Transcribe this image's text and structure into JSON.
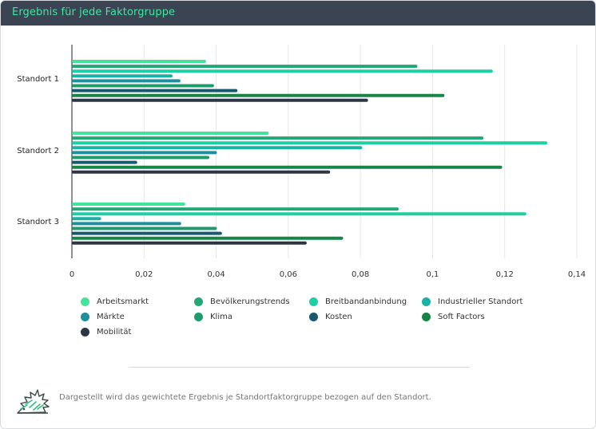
{
  "header": {
    "title": "Ergebnis für jede Faktorgruppe"
  },
  "footer": {
    "note": "Dargestellt wird das gewichtete Ergebnis je Standortfaktorgruppe bezogen auf den Standort."
  },
  "chart_data": {
    "type": "bar",
    "orientation": "horizontal",
    "categories": [
      "Standort 1",
      "Standort 2",
      "Standort 3"
    ],
    "x_ticks": [
      "0",
      "0,02",
      "0,04",
      "0,06",
      "0,08",
      "0,1",
      "0,12",
      "0,14"
    ],
    "xlim": [
      0,
      0.14
    ],
    "grid": true,
    "legend_position": "bottom",
    "series": [
      {
        "name": "Arbeitsmarkt",
        "color": "#44e39c",
        "values": [
          0.0372,
          0.0546,
          0.0314
        ]
      },
      {
        "name": "Bevölkerungstrends",
        "color": "#23a777",
        "values": [
          0.0958,
          0.1141,
          0.0906
        ]
      },
      {
        "name": "Breitbandanbindung",
        "color": "#1ecfa4",
        "values": [
          0.1167,
          0.1318,
          0.126
        ]
      },
      {
        "name": "Industrieller Standort",
        "color": "#1bb1a3",
        "values": [
          0.0279,
          0.0805,
          0.0081
        ]
      },
      {
        "name": "Märkte",
        "color": "#1f8f9e",
        "values": [
          0.0301,
          0.0402,
          0.0303
        ]
      },
      {
        "name": "Klima",
        "color": "#1e9a6d",
        "values": [
          0.0394,
          0.0381,
          0.0402
        ]
      },
      {
        "name": "Kosten",
        "color": "#175a6e",
        "values": [
          0.0459,
          0.0181,
          0.0416
        ]
      },
      {
        "name": "Soft Factors",
        "color": "#178548",
        "values": [
          0.1033,
          0.1193,
          0.0752
        ]
      },
      {
        "name": "Mobilität",
        "color": "#2d3645",
        "values": [
          0.0821,
          0.0716,
          0.0651
        ]
      }
    ]
  }
}
